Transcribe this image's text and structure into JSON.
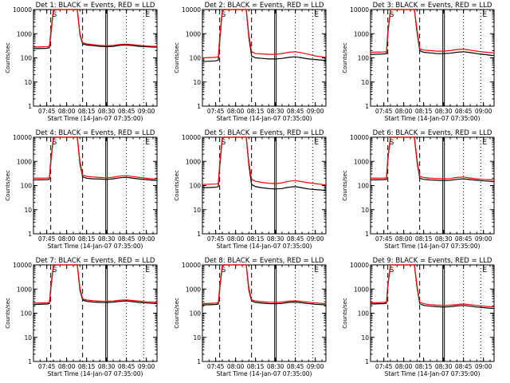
{
  "x_tick_labels": [
    "07:45",
    "08:00",
    "08:15",
    "08:30",
    "08:45",
    "09:00"
  ],
  "y_tick_labels": [
    "1",
    "10",
    "100",
    "1000",
    "10000"
  ],
  "ylabel": "Counts/sec",
  "xlabel": "Start Time (14-Jan-07 07:35:00)",
  "colors": {
    "events": "#000000",
    "lld": "#ff0000",
    "axes": "#000000"
  },
  "chart_data": [
    {
      "type": "line",
      "title": "Det 1: BLACK = Events, RED = LLD",
      "x": [
        "07:35",
        "07:45",
        "07:47",
        "07:48",
        "07:50",
        "07:52",
        "07:55",
        "08:00",
        "08:05",
        "08:08",
        "08:10",
        "08:12",
        "08:15",
        "08:20",
        "08:25",
        "08:30",
        "08:35",
        "08:40",
        "08:45",
        "08:50",
        "08:55",
        "09:00",
        "09:05",
        "09:08"
      ],
      "series": [
        {
          "name": "Events",
          "values": [
            240,
            250,
            260,
            900,
            9000,
            10000,
            10000,
            10000,
            10000,
            10000,
            900,
            380,
            340,
            320,
            300,
            290,
            300,
            330,
            340,
            320,
            300,
            290,
            280,
            280
          ]
        },
        {
          "name": "LLD",
          "values": [
            280,
            290,
            300,
            1100,
            10000,
            10000,
            10000,
            10000,
            10000,
            10000,
            1000,
            420,
            380,
            350,
            330,
            320,
            330,
            360,
            370,
            350,
            330,
            310,
            300,
            300
          ]
        }
      ],
      "ylim": [
        1,
        10000
      ],
      "yscale": "log"
    },
    {
      "type": "line",
      "title": "Det 2: BLACK = Events, RED = LLD",
      "x": [
        "07:35",
        "07:45",
        "07:47",
        "07:48",
        "07:50",
        "07:52",
        "07:55",
        "08:00",
        "08:05",
        "08:08",
        "08:10",
        "08:12",
        "08:15",
        "08:20",
        "08:25",
        "08:30",
        "08:35",
        "08:40",
        "08:45",
        "08:50",
        "08:55",
        "09:00",
        "09:05",
        "09:08"
      ],
      "series": [
        {
          "name": "Events",
          "values": [
            70,
            75,
            80,
            500,
            9000,
            10000,
            10000,
            10000,
            10000,
            10000,
            700,
            120,
            100,
            95,
            90,
            90,
            95,
            105,
            110,
            100,
            90,
            85,
            80,
            75
          ]
        },
        {
          "name": "LLD",
          "values": [
            100,
            105,
            110,
            700,
            10000,
            10000,
            10000,
            10000,
            10000,
            10000,
            900,
            180,
            150,
            145,
            140,
            140,
            150,
            170,
            180,
            160,
            140,
            120,
            110,
            105
          ]
        }
      ],
      "ylim": [
        1,
        10000
      ],
      "yscale": "log"
    },
    {
      "type": "line",
      "title": "Det 3: BLACK = Events, RED = LLD",
      "x": [
        "07:35",
        "07:45",
        "07:47",
        "07:48",
        "07:50",
        "07:52",
        "07:55",
        "08:00",
        "08:05",
        "08:08",
        "08:10",
        "08:12",
        "08:15",
        "08:20",
        "08:25",
        "08:30",
        "08:35",
        "08:40",
        "08:45",
        "08:50",
        "08:55",
        "09:00",
        "09:05",
        "09:08"
      ],
      "series": [
        {
          "name": "Events",
          "values": [
            140,
            145,
            150,
            1000,
            10000,
            10000,
            10000,
            10000,
            10000,
            10000,
            1200,
            200,
            170,
            160,
            150,
            150,
            155,
            170,
            180,
            165,
            150,
            140,
            130,
            125
          ]
        },
        {
          "name": "LLD",
          "values": [
            170,
            175,
            180,
            1200,
            10000,
            10000,
            10000,
            10000,
            10000,
            10000,
            1500,
            240,
            210,
            200,
            190,
            190,
            200,
            220,
            230,
            210,
            190,
            175,
            165,
            160
          ]
        }
      ],
      "ylim": [
        1,
        10000
      ],
      "yscale": "log"
    },
    {
      "type": "line",
      "title": "Det 4: BLACK = Events, RED = LLD",
      "x": [
        "07:35",
        "07:45",
        "07:47",
        "07:48",
        "07:50",
        "07:52",
        "07:55",
        "08:00",
        "08:05",
        "08:08",
        "08:10",
        "08:12",
        "08:15",
        "08:20",
        "08:25",
        "08:30",
        "08:35",
        "08:40",
        "08:45",
        "08:50",
        "08:55",
        "09:00",
        "09:05",
        "09:08"
      ],
      "series": [
        {
          "name": "Events",
          "values": [
            170,
            175,
            180,
            900,
            9000,
            10000,
            10000,
            10000,
            10000,
            10000,
            800,
            230,
            200,
            190,
            185,
            180,
            190,
            210,
            220,
            200,
            185,
            175,
            165,
            160
          ]
        },
        {
          "name": "LLD",
          "values": [
            200,
            205,
            210,
            1100,
            10000,
            10000,
            10000,
            10000,
            10000,
            10000,
            1000,
            270,
            240,
            225,
            215,
            210,
            220,
            245,
            255,
            235,
            215,
            200,
            190,
            185
          ]
        }
      ],
      "ylim": [
        1,
        10000
      ],
      "yscale": "log"
    },
    {
      "type": "line",
      "title": "Det 5: BLACK = Events, RED = LLD",
      "x": [
        "07:35",
        "07:45",
        "07:47",
        "07:48",
        "07:50",
        "07:52",
        "07:55",
        "08:00",
        "08:05",
        "08:08",
        "08:10",
        "08:12",
        "08:15",
        "08:20",
        "08:25",
        "08:30",
        "08:35",
        "08:40",
        "08:45",
        "08:50",
        "08:55",
        "09:00",
        "09:05",
        "09:08"
      ],
      "series": [
        {
          "name": "Events",
          "values": [
            80,
            85,
            90,
            600,
            9000,
            10000,
            10000,
            10000,
            10000,
            10000,
            700,
            110,
            90,
            80,
            75,
            72,
            75,
            85,
            90,
            80,
            72,
            68,
            65,
            62
          ]
        },
        {
          "name": "LLD",
          "values": [
            110,
            115,
            120,
            800,
            10000,
            10000,
            10000,
            10000,
            10000,
            10000,
            900,
            180,
            150,
            135,
            125,
            120,
            130,
            150,
            160,
            145,
            130,
            120,
            110,
            105
          ]
        }
      ],
      "ylim": [
        1,
        10000
      ],
      "yscale": "log"
    },
    {
      "type": "line",
      "title": "Det 6: BLACK = Events, RED = LLD",
      "x": [
        "07:35",
        "07:45",
        "07:47",
        "07:48",
        "07:50",
        "07:52",
        "07:55",
        "08:00",
        "08:05",
        "08:08",
        "08:10",
        "08:12",
        "08:15",
        "08:20",
        "08:25",
        "08:30",
        "08:35",
        "08:40",
        "08:45",
        "08:50",
        "08:55",
        "09:00",
        "09:05",
        "09:08"
      ],
      "series": [
        {
          "name": "Events",
          "values": [
            170,
            175,
            180,
            1200,
            10000,
            10000,
            10000,
            10000,
            10000,
            10000,
            1000,
            200,
            180,
            170,
            165,
            160,
            165,
            180,
            190,
            175,
            165,
            155,
            150,
            145
          ]
        },
        {
          "name": "LLD",
          "values": [
            200,
            205,
            210,
            1400,
            10000,
            10000,
            10000,
            10000,
            10000,
            10000,
            1200,
            240,
            215,
            200,
            195,
            190,
            195,
            215,
            225,
            205,
            190,
            180,
            175,
            170
          ]
        }
      ],
      "ylim": [
        1,
        10000
      ],
      "yscale": "log"
    },
    {
      "type": "line",
      "title": "Det 7: BLACK = Events, RED = LLD",
      "x": [
        "07:35",
        "07:45",
        "07:47",
        "07:48",
        "07:50",
        "07:52",
        "07:55",
        "08:00",
        "08:05",
        "08:08",
        "08:10",
        "08:12",
        "08:15",
        "08:20",
        "08:25",
        "08:30",
        "08:35",
        "08:40",
        "08:45",
        "08:50",
        "08:55",
        "09:00",
        "09:05",
        "09:08"
      ],
      "series": [
        {
          "name": "Events",
          "values": [
            230,
            240,
            250,
            1000,
            9000,
            10000,
            10000,
            10000,
            10000,
            10000,
            900,
            350,
            310,
            290,
            280,
            275,
            285,
            310,
            320,
            300,
            280,
            265,
            255,
            250
          ]
        },
        {
          "name": "LLD",
          "values": [
            260,
            270,
            280,
            1200,
            10000,
            10000,
            10000,
            10000,
            10000,
            10000,
            1100,
            390,
            350,
            330,
            315,
            310,
            320,
            345,
            355,
            335,
            315,
            295,
            285,
            280
          ]
        }
      ],
      "ylim": [
        1,
        10000
      ],
      "yscale": "log"
    },
    {
      "type": "line",
      "title": "Det 8: BLACK = Events, RED = LLD",
      "x": [
        "07:35",
        "07:45",
        "07:47",
        "07:48",
        "07:50",
        "07:52",
        "07:55",
        "08:00",
        "08:05",
        "08:08",
        "08:10",
        "08:12",
        "08:15",
        "08:20",
        "08:25",
        "08:30",
        "08:35",
        "08:40",
        "08:45",
        "08:50",
        "08:55",
        "09:00",
        "09:05",
        "09:08"
      ],
      "series": [
        {
          "name": "Events",
          "values": [
            220,
            230,
            240,
            1000,
            9000,
            10000,
            10000,
            10000,
            10000,
            10000,
            900,
            320,
            280,
            260,
            250,
            245,
            255,
            280,
            290,
            270,
            250,
            235,
            225,
            220
          ]
        },
        {
          "name": "LLD",
          "values": [
            250,
            260,
            270,
            1200,
            10000,
            10000,
            10000,
            10000,
            10000,
            10000,
            1100,
            360,
            320,
            300,
            285,
            280,
            290,
            315,
            325,
            305,
            285,
            265,
            255,
            250
          ]
        }
      ],
      "ylim": [
        1,
        10000
      ],
      "yscale": "log"
    },
    {
      "type": "line",
      "title": "Det 9: BLACK = Events, RED = LLD",
      "x": [
        "07:35",
        "07:45",
        "07:47",
        "07:48",
        "07:50",
        "07:52",
        "07:55",
        "08:00",
        "08:05",
        "08:08",
        "08:10",
        "08:12",
        "08:15",
        "08:20",
        "08:25",
        "08:30",
        "08:35",
        "08:40",
        "08:45",
        "08:50",
        "08:55",
        "09:00",
        "09:05",
        "09:08"
      ],
      "series": [
        {
          "name": "Events",
          "values": [
            240,
            250,
            260,
            1300,
            10000,
            10000,
            10000,
            10000,
            10000,
            10000,
            1200,
            250,
            210,
            195,
            185,
            180,
            185,
            200,
            210,
            195,
            180,
            170,
            160,
            155
          ]
        },
        {
          "name": "LLD",
          "values": [
            270,
            280,
            290,
            1500,
            10000,
            10000,
            10000,
            10000,
            10000,
            10000,
            1400,
            290,
            245,
            225,
            215,
            210,
            215,
            230,
            240,
            225,
            210,
            195,
            185,
            180
          ]
        }
      ],
      "ylim": [
        1,
        10000
      ],
      "yscale": "log"
    }
  ]
}
